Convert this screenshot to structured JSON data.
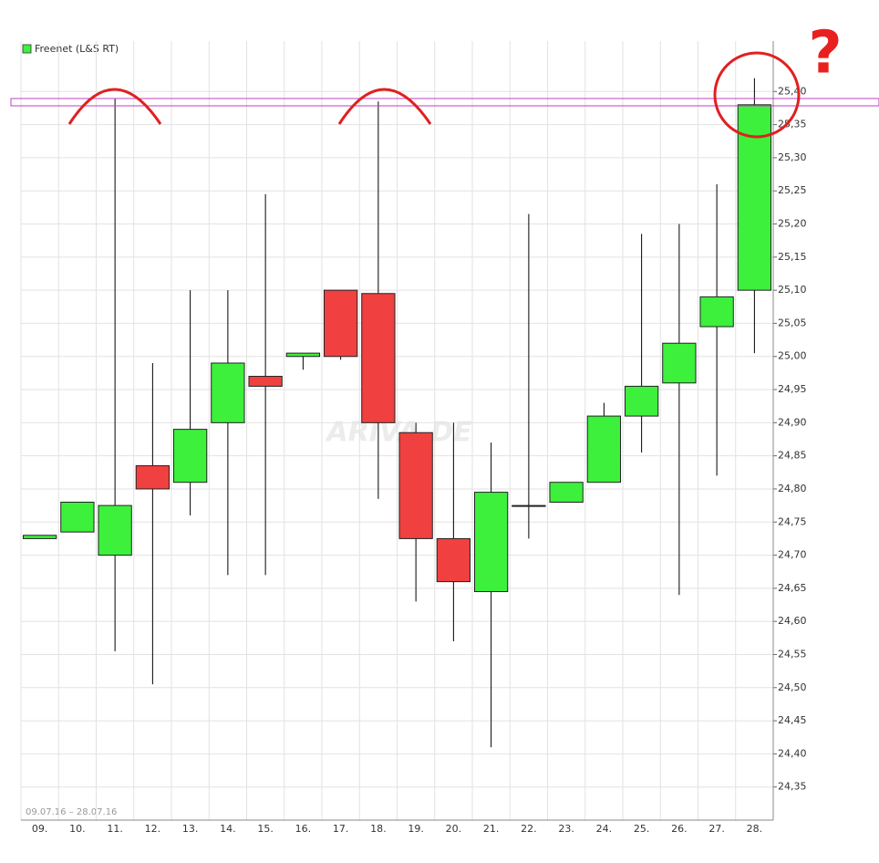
{
  "chart_data": {
    "type": "candlestick",
    "legend": "Freenet (L&S RT)",
    "date_range": "09.07.16 – 28.07.16",
    "watermark": "ARIVA.DE",
    "annotation": "?",
    "categories": [
      "09.",
      "10.",
      "11.",
      "12.",
      "13.",
      "14.",
      "15.",
      "16.",
      "17.",
      "18.",
      "19.",
      "20.",
      "21.",
      "22.",
      "23.",
      "24.",
      "25.",
      "26.",
      "27.",
      "28."
    ],
    "open": [
      24.725,
      24.735,
      24.7,
      24.835,
      24.81,
      24.9,
      24.97,
      25.0,
      25.1,
      25.095,
      24.885,
      24.725,
      24.645,
      24.775,
      24.78,
      24.81,
      24.91,
      24.96,
      25.045,
      25.1
    ],
    "high": [
      24.73,
      24.78,
      25.39,
      24.99,
      25.1,
      25.1,
      25.245,
      25.005,
      25.1,
      25.385,
      24.9,
      24.9,
      24.87,
      25.215,
      24.81,
      24.93,
      25.185,
      25.2,
      25.26,
      25.42
    ],
    "low": [
      24.725,
      24.735,
      24.555,
      24.505,
      24.76,
      24.67,
      24.67,
      24.98,
      24.995,
      24.785,
      24.63,
      24.57,
      24.41,
      24.725,
      24.78,
      24.81,
      24.855,
      24.64,
      24.82,
      25.005
    ],
    "close": [
      24.73,
      24.78,
      24.775,
      24.8,
      24.89,
      24.99,
      24.955,
      25.005,
      25.0,
      24.9,
      24.725,
      24.66,
      24.795,
      24.775,
      24.81,
      24.91,
      24.955,
      25.02,
      25.09,
      25.38
    ],
    "up_color": "#3cf03c",
    "down_color": "#f04040",
    "ylim": [
      24.3,
      25.45
    ],
    "yticks": [
      {
        "value": 24.35,
        "label": "24,35"
      },
      {
        "value": 24.4,
        "label": "24,40"
      },
      {
        "value": 24.45,
        "label": "24,45"
      },
      {
        "value": 24.5,
        "label": "24,50"
      },
      {
        "value": 24.55,
        "label": "24,55"
      },
      {
        "value": 24.6,
        "label": "24,60"
      },
      {
        "value": 24.65,
        "label": "24,65"
      },
      {
        "value": 24.7,
        "label": "24,70"
      },
      {
        "value": 24.75,
        "label": "24,75"
      },
      {
        "value": 24.8,
        "label": "24,80"
      },
      {
        "value": 24.85,
        "label": "24,85"
      },
      {
        "value": 24.9,
        "label": "24,90"
      },
      {
        "value": 24.95,
        "label": "24,95"
      },
      {
        "value": 25.0,
        "label": "25,00"
      },
      {
        "value": 25.05,
        "label": "25,05"
      },
      {
        "value": 25.1,
        "label": "25,10"
      },
      {
        "value": 25.15,
        "label": "25,15"
      },
      {
        "value": 25.2,
        "label": "25,20"
      },
      {
        "value": 25.25,
        "label": "25,25"
      },
      {
        "value": 25.3,
        "label": "25,30"
      },
      {
        "value": 25.35,
        "label": "25,35"
      },
      {
        "value": 25.4,
        "label": "25,40"
      }
    ],
    "grid": true
  }
}
